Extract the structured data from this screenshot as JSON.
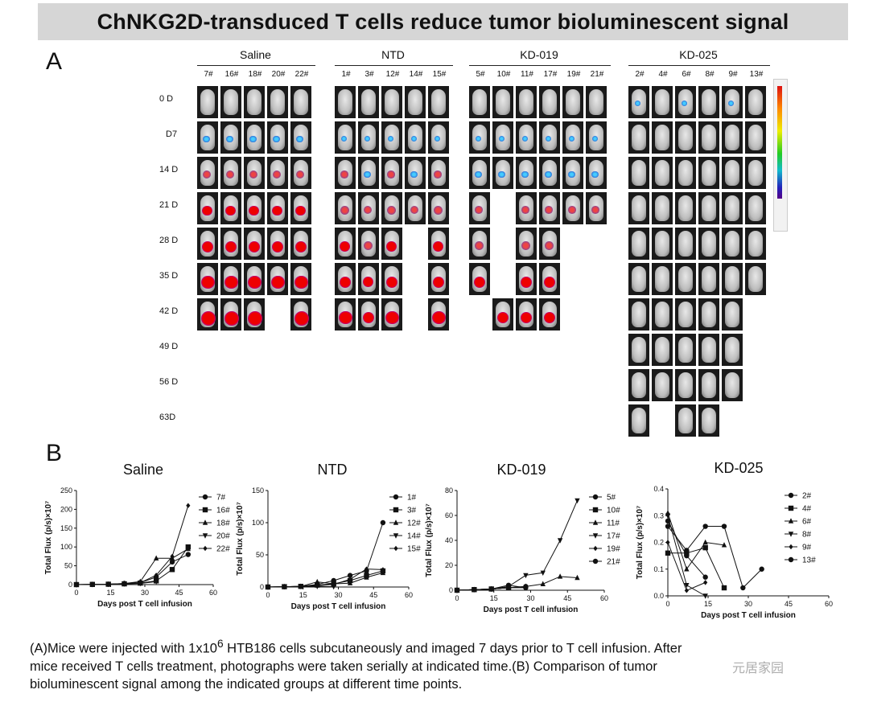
{
  "title": "ChNKG2D-transduced T cells reduce tumor bioluminescent signal",
  "panelA": {
    "label": "A",
    "days": [
      "0 D",
      "D7",
      "14 D",
      "21 D",
      "28 D",
      "35 D",
      "42 D",
      "49 D",
      "56 D",
      "63D"
    ],
    "groups": [
      {
        "name": "Saline",
        "mice": [
          "7#",
          "16#",
          "18#",
          "20#",
          "22#"
        ],
        "rows": 7
      },
      {
        "name": "NTD",
        "mice": [
          "1#",
          "3#",
          "12#",
          "14#",
          "15#"
        ],
        "rows": 7
      },
      {
        "name": "KD-019",
        "mice": [
          "5#",
          "10#",
          "11#",
          "17#",
          "19#",
          "21#"
        ],
        "rows": 7
      },
      {
        "name": "KD-025",
        "mice": [
          "2#",
          "4#",
          "6#",
          "8#",
          "9#",
          "13#"
        ],
        "rows": 10
      }
    ]
  },
  "panelB": {
    "label": "B",
    "chart_data": [
      {
        "type": "line",
        "title": "Saline",
        "xlabel": "Days post T cell infusion",
        "ylabel": "Total Flux (p/s)×10⁷",
        "xlim": [
          0,
          60
        ],
        "ylim": [
          0,
          250
        ],
        "xticks": [
          0,
          15,
          30,
          45,
          60
        ],
        "yticks": [
          0,
          50,
          100,
          150,
          200,
          250
        ],
        "legend": "right",
        "series": [
          {
            "name": "7#",
            "marker": "circle",
            "points": [
              [
                0,
                0
              ],
              [
                7,
                0.5
              ],
              [
                14,
                1
              ],
              [
                21,
                3
              ],
              [
                28,
                5
              ],
              [
                35,
                20
              ],
              [
                42,
                60
              ],
              [
                49,
                80
              ]
            ]
          },
          {
            "name": "16#",
            "marker": "square",
            "points": [
              [
                0,
                0
              ],
              [
                7,
                0.5
              ],
              [
                14,
                1
              ],
              [
                21,
                2
              ],
              [
                28,
                4
              ],
              [
                35,
                10
              ],
              [
                42,
                40
              ],
              [
                49,
                100
              ]
            ]
          },
          {
            "name": "18#",
            "marker": "triangle-up",
            "points": [
              [
                0,
                0
              ],
              [
                7,
                0.5
              ],
              [
                14,
                1
              ],
              [
                21,
                3
              ],
              [
                28,
                8
              ],
              [
                35,
                70
              ],
              [
                42,
                70
              ],
              [
                49,
                95
              ]
            ]
          },
          {
            "name": "20#",
            "marker": "triangle-down",
            "points": [
              [
                0,
                0
              ],
              [
                7,
                0.5
              ],
              [
                14,
                1
              ],
              [
                21,
                2
              ],
              [
                28,
                3
              ],
              [
                35,
                8
              ]
            ]
          },
          {
            "name": "22#",
            "marker": "diamond",
            "points": [
              [
                0,
                0
              ],
              [
                7,
                0.5
              ],
              [
                14,
                1
              ],
              [
                21,
                2
              ],
              [
                28,
                5
              ],
              [
                35,
                25
              ],
              [
                42,
                75
              ],
              [
                49,
                210
              ]
            ]
          }
        ]
      },
      {
        "type": "line",
        "title": "NTD",
        "xlabel": "Days post T cell infusion",
        "ylabel": "Total Flux (p/s)×10⁷",
        "xlim": [
          0,
          60
        ],
        "ylim": [
          0,
          150
        ],
        "xticks": [
          0,
          15,
          30,
          45,
          60
        ],
        "yticks": [
          0,
          50,
          100,
          150
        ],
        "legend": "right",
        "series": [
          {
            "name": "1#",
            "marker": "circle",
            "points": [
              [
                0,
                0
              ],
              [
                7,
                0.5
              ],
              [
                14,
                1
              ],
              [
                21,
                4
              ],
              [
                28,
                10
              ],
              [
                35,
                18
              ],
              [
                42,
                25
              ],
              [
                49,
                100
              ]
            ]
          },
          {
            "name": "3#",
            "marker": "square",
            "points": [
              [
                0,
                0
              ],
              [
                7,
                0.5
              ],
              [
                14,
                1
              ],
              [
                21,
                3
              ],
              [
                28,
                5
              ],
              [
                35,
                10
              ],
              [
                42,
                18
              ],
              [
                49,
                25
              ]
            ]
          },
          {
            "name": "12#",
            "marker": "triangle-up",
            "points": [
              [
                0,
                0
              ],
              [
                7,
                0.5
              ],
              [
                14,
                1
              ],
              [
                21,
                8
              ],
              [
                28,
                5
              ],
              [
                35,
                6
              ],
              [
                42,
                15
              ],
              [
                49,
                22
              ]
            ]
          },
          {
            "name": "14#",
            "marker": "triangle-down",
            "points": [
              [
                0,
                0
              ],
              [
                7,
                0.5
              ],
              [
                14,
                1
              ],
              [
                21,
                1
              ],
              [
                28,
                0.5
              ]
            ]
          },
          {
            "name": "15#",
            "marker": "diamond",
            "points": [
              [
                0,
                0
              ],
              [
                7,
                0.5
              ],
              [
                14,
                1
              ],
              [
                21,
                2
              ],
              [
                28,
                4
              ],
              [
                35,
                12
              ],
              [
                42,
                28
              ],
              [
                49,
                27
              ]
            ]
          }
        ]
      },
      {
        "type": "line",
        "title": "KD-019",
        "xlabel": "Days post T cell infusion",
        "ylabel": "Total Flux (p/s)×10⁷",
        "xlim": [
          0,
          60
        ],
        "ylim": [
          0,
          80
        ],
        "xticks": [
          0,
          15,
          30,
          45,
          60
        ],
        "yticks": [
          0,
          20,
          40,
          60,
          80
        ],
        "legend": "right",
        "series": [
          {
            "name": "5#",
            "marker": "circle",
            "points": [
              [
                0,
                0
              ],
              [
                7,
                0.5
              ],
              [
                14,
                1
              ],
              [
                21,
                4
              ],
              [
                28,
                2
              ]
            ]
          },
          {
            "name": "10#",
            "marker": "square",
            "points": [
              [
                0,
                0
              ],
              [
                7,
                0.5
              ],
              [
                14,
                1
              ],
              [
                21,
                2
              ]
            ]
          },
          {
            "name": "11#",
            "marker": "triangle-up",
            "points": [
              [
                0,
                0
              ],
              [
                7,
                0.5
              ],
              [
                14,
                1
              ],
              [
                21,
                2
              ],
              [
                28,
                3
              ],
              [
                35,
                5
              ],
              [
                42,
                11
              ],
              [
                49,
                10
              ]
            ]
          },
          {
            "name": "17#",
            "marker": "triangle-down",
            "points": [
              [
                0,
                0
              ],
              [
                7,
                0.5
              ],
              [
                14,
                1
              ],
              [
                21,
                3
              ],
              [
                28,
                12
              ],
              [
                35,
                14
              ],
              [
                42,
                40
              ],
              [
                49,
                72
              ]
            ]
          },
          {
            "name": "19#",
            "marker": "diamond",
            "points": [
              [
                0,
                0
              ],
              [
                7,
                0.5
              ],
              [
                14,
                1
              ],
              [
                21,
                2
              ],
              [
                28,
                2
              ]
            ]
          },
          {
            "name": "21#",
            "marker": "circle",
            "points": [
              [
                0,
                0
              ],
              [
                7,
                0.5
              ],
              [
                14,
                1
              ],
              [
                21,
                2
              ],
              [
                28,
                3
              ]
            ]
          }
        ]
      },
      {
        "type": "line",
        "title": "KD-025",
        "xlabel": "Days post T cell infusion",
        "ylabel": "Total Flux (p/s)×10⁷",
        "xlim": [
          0,
          60
        ],
        "ylim": [
          0,
          0.4
        ],
        "xticks": [
          0,
          15,
          30,
          45,
          60
        ],
        "yticks": [
          0.0,
          0.1,
          0.2,
          0.3,
          0.4
        ],
        "legend": "right",
        "series": [
          {
            "name": "2#",
            "marker": "circle",
            "points": [
              [
                0,
                0.28
              ],
              [
                7,
                0.15
              ],
              [
                14,
                0.07
              ]
            ]
          },
          {
            "name": "4#",
            "marker": "square",
            "points": [
              [
                0,
                0.16
              ],
              [
                7,
                0.16
              ],
              [
                14,
                0.18
              ],
              [
                21,
                0.03
              ]
            ]
          },
          {
            "name": "6#",
            "marker": "triangle-up",
            "points": [
              [
                0,
                0.31
              ],
              [
                7,
                0.1
              ],
              [
                14,
                0.2
              ],
              [
                21,
                0.19
              ]
            ]
          },
          {
            "name": "8#",
            "marker": "triangle-down",
            "points": [
              [
                0,
                0.3
              ],
              [
                7,
                0.04
              ],
              [
                14,
                0.0
              ]
            ]
          },
          {
            "name": "9#",
            "marker": "diamond",
            "points": [
              [
                0,
                0.2
              ],
              [
                7,
                0.02
              ],
              [
                14,
                0.05
              ]
            ]
          },
          {
            "name": "13#",
            "marker": "circle",
            "points": [
              [
                0,
                0.26
              ],
              [
                7,
                0.17
              ],
              [
                14,
                0.26
              ],
              [
                21,
                0.26
              ],
              [
                28,
                0.03
              ],
              [
                35,
                0.1
              ]
            ]
          }
        ]
      }
    ]
  },
  "caption": {
    "line1_pre": "(A)Mice were injected with 1x10",
    "line1_sup": "6",
    "line1_post": " HTB186 cells subcutaneously and imaged 7 days prior to T cell infusion. After",
    "line2": "mice received T cells treatment, photographs were taken serially at indicated time.(B) Comparison of tumor",
    "line3": "bioluminescent signal among the indicated groups at different time points."
  },
  "watermark": "元居家园"
}
